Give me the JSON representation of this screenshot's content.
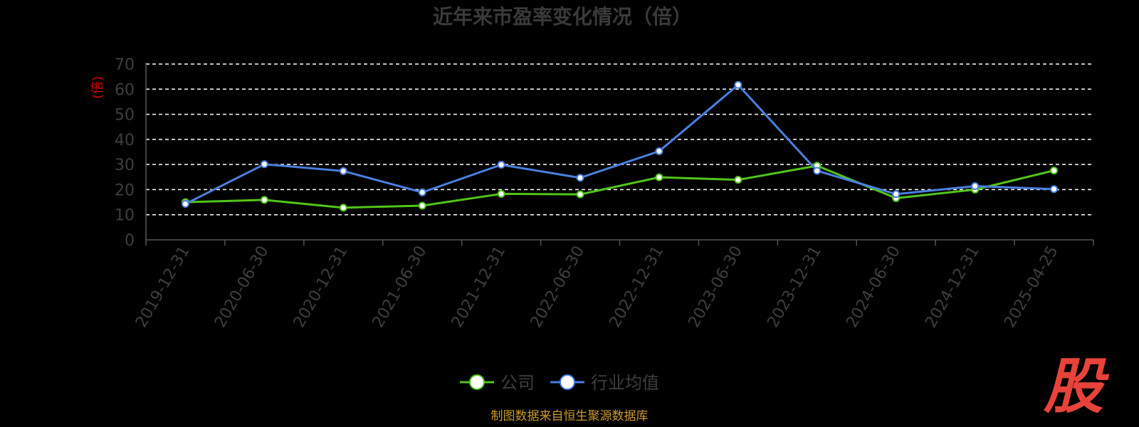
{
  "chart_data": {
    "type": "line",
    "title": "近年来市盈率变化情况（倍）",
    "ylabel": "(倍)",
    "ylim": [
      0,
      70
    ],
    "yticks": [
      0,
      10,
      20,
      30,
      40,
      50,
      60,
      70
    ],
    "grid": true,
    "legend_position": "bottom",
    "categories": [
      "2019-12-31",
      "2020-06-30",
      "2020-12-31",
      "2021-06-30",
      "2021-12-31",
      "2022-06-30",
      "2022-12-31",
      "2023-06-30",
      "2023-12-31",
      "2024-06-30",
      "2024-12-31",
      "2025-04-25"
    ],
    "series": [
      {
        "name": "公司",
        "color": "#52c41a",
        "values": [
          15.0,
          15.9,
          12.8,
          13.6,
          18.3,
          18.1,
          24.9,
          23.9,
          29.5,
          16.6,
          20.0,
          27.6
        ]
      },
      {
        "name": "行业均值",
        "color": "#4a7fe0",
        "values": [
          14.3,
          30.1,
          27.4,
          18.9,
          29.9,
          24.7,
          35.3,
          61.7,
          27.5,
          18.2,
          21.4,
          20.2
        ]
      }
    ]
  },
  "watermark": "股",
  "source_note": "制图数据来自恒生聚源数据库"
}
